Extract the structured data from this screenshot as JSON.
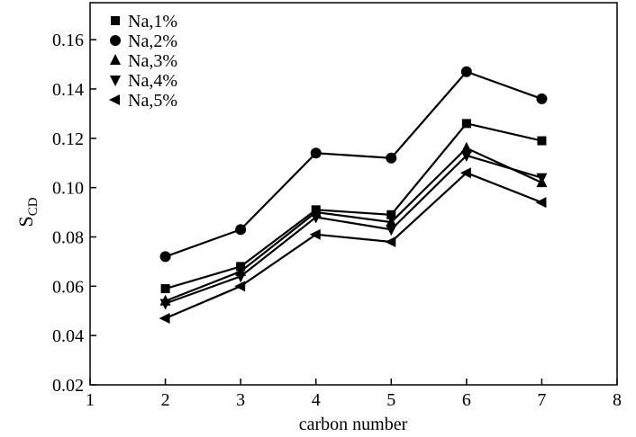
{
  "chart_data": {
    "type": "line",
    "xlabel": "carbon number",
    "ylabel_main": "S",
    "ylabel_sub": "CD",
    "xlim": [
      1,
      8
    ],
    "ylim": [
      0.02,
      0.175
    ],
    "xticks": [
      1,
      2,
      3,
      4,
      5,
      6,
      7,
      8
    ],
    "yticks": [
      "0.02",
      "0.04",
      "0.06",
      "0.08",
      "0.10",
      "0.12",
      "0.14",
      "0.16"
    ],
    "grid": false,
    "legend_position": "top-left",
    "x": [
      2,
      3,
      4,
      5,
      6,
      7
    ],
    "series": [
      {
        "name": "Na,1%",
        "marker": "square",
        "values": [
          0.059,
          0.068,
          0.091,
          0.089,
          0.126,
          0.119
        ]
      },
      {
        "name": "Na,2%",
        "marker": "circle",
        "values": [
          0.072,
          0.083,
          0.114,
          0.112,
          0.147,
          0.136
        ]
      },
      {
        "name": "Na,3%",
        "marker": "triangle-up",
        "values": [
          0.054,
          0.066,
          0.09,
          0.086,
          0.116,
          0.102
        ]
      },
      {
        "name": "Na,4%",
        "marker": "triangle-down",
        "values": [
          0.053,
          0.064,
          0.088,
          0.083,
          0.113,
          0.104
        ]
      },
      {
        "name": "Na,5%",
        "marker": "triangle-left",
        "values": [
          0.047,
          0.06,
          0.081,
          0.078,
          0.106,
          0.094
        ]
      }
    ],
    "color": "#000000"
  }
}
